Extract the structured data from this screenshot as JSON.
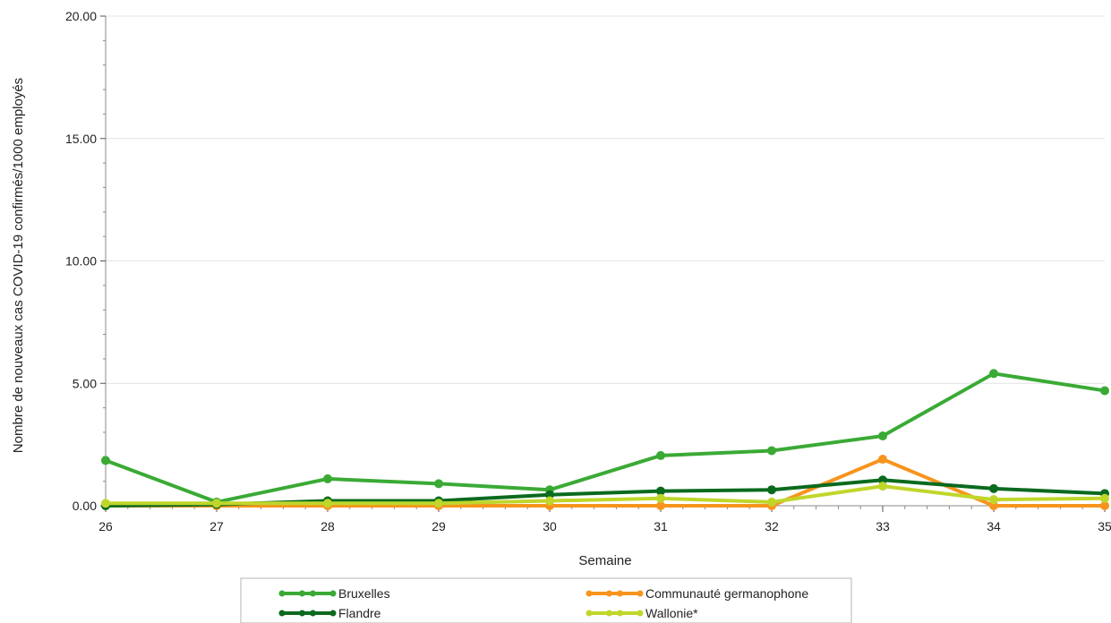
{
  "chart_data": {
    "type": "line",
    "xlabel": "Semaine",
    "ylabel": "Nombre de nouveaux cas COVID-19 confirmés/1000 employés",
    "x": [
      26,
      27,
      28,
      29,
      30,
      31,
      32,
      33,
      34,
      35
    ],
    "x_tick_labels": [
      "26",
      "27",
      "28",
      "29",
      "30",
      "31",
      "32",
      "33",
      "34",
      "35"
    ],
    "y_ticks": [
      0,
      5,
      10,
      15,
      20
    ],
    "y_tick_labels": [
      "0.00",
      "5.00",
      "10.00",
      "15.00",
      "20.00"
    ],
    "xlim": [
      26,
      35
    ],
    "ylim": [
      0,
      20
    ],
    "grid": "horizontal",
    "legend_position": "bottom",
    "series": [
      {
        "name": "Bruxelles",
        "color": "#3aaa35",
        "values": [
          1.85,
          0.15,
          1.1,
          0.9,
          0.65,
          2.05,
          2.25,
          2.85,
          5.4,
          4.7
        ]
      },
      {
        "name": "Communauté germanophone",
        "color": "#f7941d",
        "values": [
          0.0,
          0.0,
          0.0,
          0.0,
          0.0,
          0.0,
          0.0,
          1.9,
          0.0,
          0.0
        ]
      },
      {
        "name": "Flandre",
        "color": "#0a6a1e",
        "values": [
          0.0,
          0.05,
          0.2,
          0.2,
          0.45,
          0.6,
          0.65,
          1.05,
          0.7,
          0.5
        ]
      },
      {
        "name": "Wallonie*",
        "color": "#c0d62b",
        "values": [
          0.1,
          0.1,
          0.1,
          0.1,
          0.2,
          0.3,
          0.15,
          0.8,
          0.25,
          0.3
        ]
      }
    ]
  }
}
